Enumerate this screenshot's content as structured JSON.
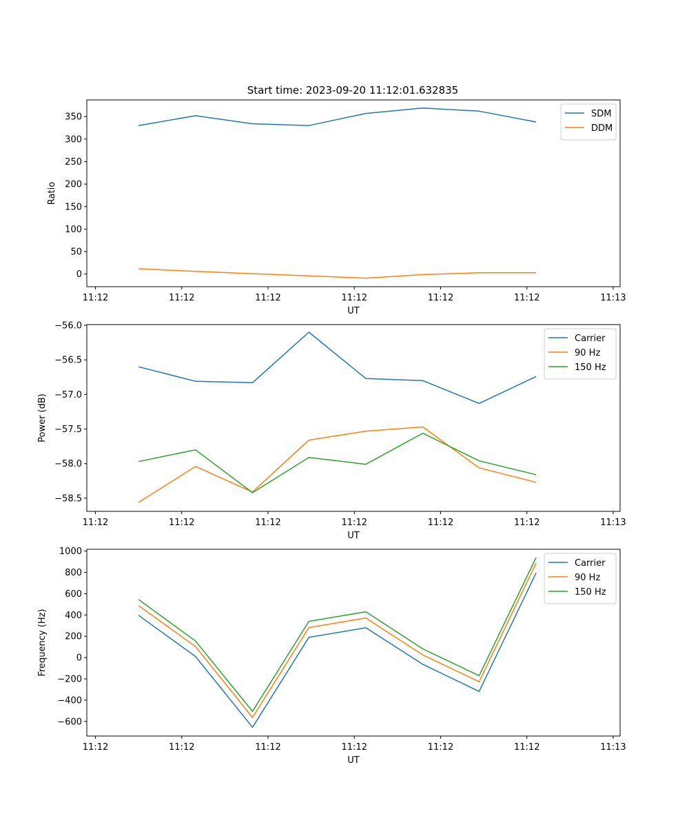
{
  "figure_title": "Start time: 2023-09-20 11:12:01.632835",
  "colors": {
    "series1": "#1f77b4",
    "series2": "#ff7f0e",
    "series3": "#2ca02c",
    "axis": "#000000",
    "legend_border": "#cccccc"
  },
  "chart_data": [
    {
      "type": "line",
      "title": "Start time: 2023-09-20 11:12:01.632835",
      "xlabel": "UT",
      "ylabel": "Ratio",
      "xlim": [
        0.25,
        9.52
      ],
      "ylim": [
        -28,
        387
      ],
      "x_ticks": [
        0.4,
        1.9,
        3.4,
        4.9,
        6.4,
        7.9,
        9.4
      ],
      "x_tick_labels": [
        "11:12",
        "11:12",
        "11:12",
        "11:12",
        "11:12",
        "11:12",
        "11:13"
      ],
      "y_ticks": [
        0,
        50,
        100,
        150,
        200,
        250,
        300,
        350
      ],
      "y_tick_labels": [
        "0",
        "50",
        "100",
        "150",
        "200",
        "250",
        "300",
        "350"
      ],
      "legend_position": "top-right",
      "x": [
        1.15,
        2.14,
        3.13,
        4.11,
        5.1,
        6.09,
        7.07,
        8.06
      ],
      "series": [
        {
          "name": "SDM",
          "color_key": "series1",
          "values": [
            330,
            352,
            334,
            330,
            357,
            369,
            362,
            338
          ]
        },
        {
          "name": "DDM",
          "color_key": "series2",
          "values": [
            12,
            6,
            1,
            -4,
            -9,
            -1,
            3,
            3
          ]
        }
      ]
    },
    {
      "type": "line",
      "title": "",
      "xlabel": "UT",
      "ylabel": "Power (dB)",
      "xlim": [
        0.25,
        9.52
      ],
      "ylim": [
        -58.69,
        -55.99
      ],
      "x_ticks": [
        0.4,
        1.9,
        3.4,
        4.9,
        6.4,
        7.9,
        9.4
      ],
      "x_tick_labels": [
        "11:12",
        "11:12",
        "11:12",
        "11:12",
        "11:12",
        "11:12",
        "11:13"
      ],
      "y_ticks": [
        -58.5,
        -58.0,
        -57.5,
        -57.0,
        -56.5,
        -56.0
      ],
      "y_tick_labels": [
        "−58.5",
        "−58.0",
        "−57.5",
        "−57.0",
        "−56.5",
        "−56.0"
      ],
      "legend_position": "top-right",
      "x": [
        1.15,
        2.14,
        3.13,
        4.11,
        5.1,
        6.09,
        7.07,
        8.06
      ],
      "series": [
        {
          "name": "Carrier",
          "color_key": "series1",
          "values": [
            -56.6,
            -56.81,
            -56.83,
            -56.1,
            -56.77,
            -56.8,
            -57.13,
            -56.74
          ]
        },
        {
          "name": "90 Hz",
          "color_key": "series2",
          "values": [
            -58.56,
            -58.04,
            -58.41,
            -57.66,
            -57.53,
            -57.47,
            -58.06,
            -58.27
          ]
        },
        {
          "name": "150 Hz",
          "color_key": "series3",
          "values": [
            -57.97,
            -57.8,
            -58.42,
            -57.91,
            -58.01,
            -57.56,
            -57.96,
            -58.16
          ]
        }
      ]
    },
    {
      "type": "line",
      "title": "",
      "xlabel": "UT",
      "ylabel": "Frequency (Hz)",
      "xlim": [
        0.25,
        9.52
      ],
      "ylim": [
        -737,
        1017
      ],
      "x_ticks": [
        0.4,
        1.9,
        3.4,
        4.9,
        6.4,
        7.9,
        9.4
      ],
      "x_tick_labels": [
        "11:12",
        "11:12",
        "11:12",
        "11:12",
        "11:12",
        "11:12",
        "11:13"
      ],
      "y_ticks": [
        -600,
        -400,
        -200,
        0,
        200,
        400,
        600,
        800,
        1000
      ],
      "y_tick_labels": [
        "−600",
        "−400",
        "−200",
        "0",
        "200",
        "400",
        "600",
        "800",
        "1000"
      ],
      "legend_position": "top-right",
      "x": [
        1.15,
        2.14,
        3.13,
        4.11,
        5.1,
        6.09,
        7.07,
        8.06
      ],
      "series": [
        {
          "name": "Carrier",
          "color_key": "series1",
          "values": [
            397,
            10,
            -655,
            190,
            280,
            -63,
            -318,
            795
          ]
        },
        {
          "name": "90 Hz",
          "color_key": "series2",
          "values": [
            488,
            103,
            -563,
            282,
            372,
            25,
            -227,
            887
          ]
        },
        {
          "name": "150 Hz",
          "color_key": "series3",
          "values": [
            545,
            155,
            -505,
            340,
            430,
            82,
            -170,
            940
          ]
        }
      ]
    }
  ]
}
